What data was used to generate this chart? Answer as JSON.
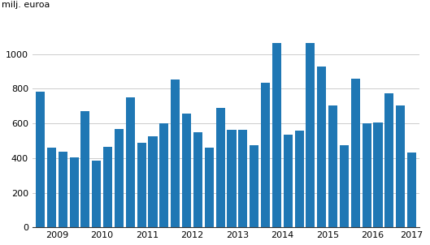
{
  "values": [
    785,
    460,
    435,
    405,
    670,
    385,
    465,
    570,
    750,
    490,
    525,
    600,
    855,
    655,
    550,
    460,
    690,
    565,
    565,
    475,
    835,
    1065,
    535,
    560,
    1065,
    930,
    705,
    475,
    860,
    600,
    605,
    775,
    705,
    430
  ],
  "bar_color": "#1f77b4",
  "ylabel": "milj. euroa",
  "ylim": [
    0,
    1200
  ],
  "yticks": [
    0,
    200,
    400,
    600,
    800,
    1000
  ],
  "year_labels": [
    "2009",
    "2010",
    "2011",
    "2012",
    "2013",
    "2014",
    "2015",
    "2016",
    "2017"
  ],
  "background_color": "#ffffff",
  "grid_color": "#cccccc"
}
